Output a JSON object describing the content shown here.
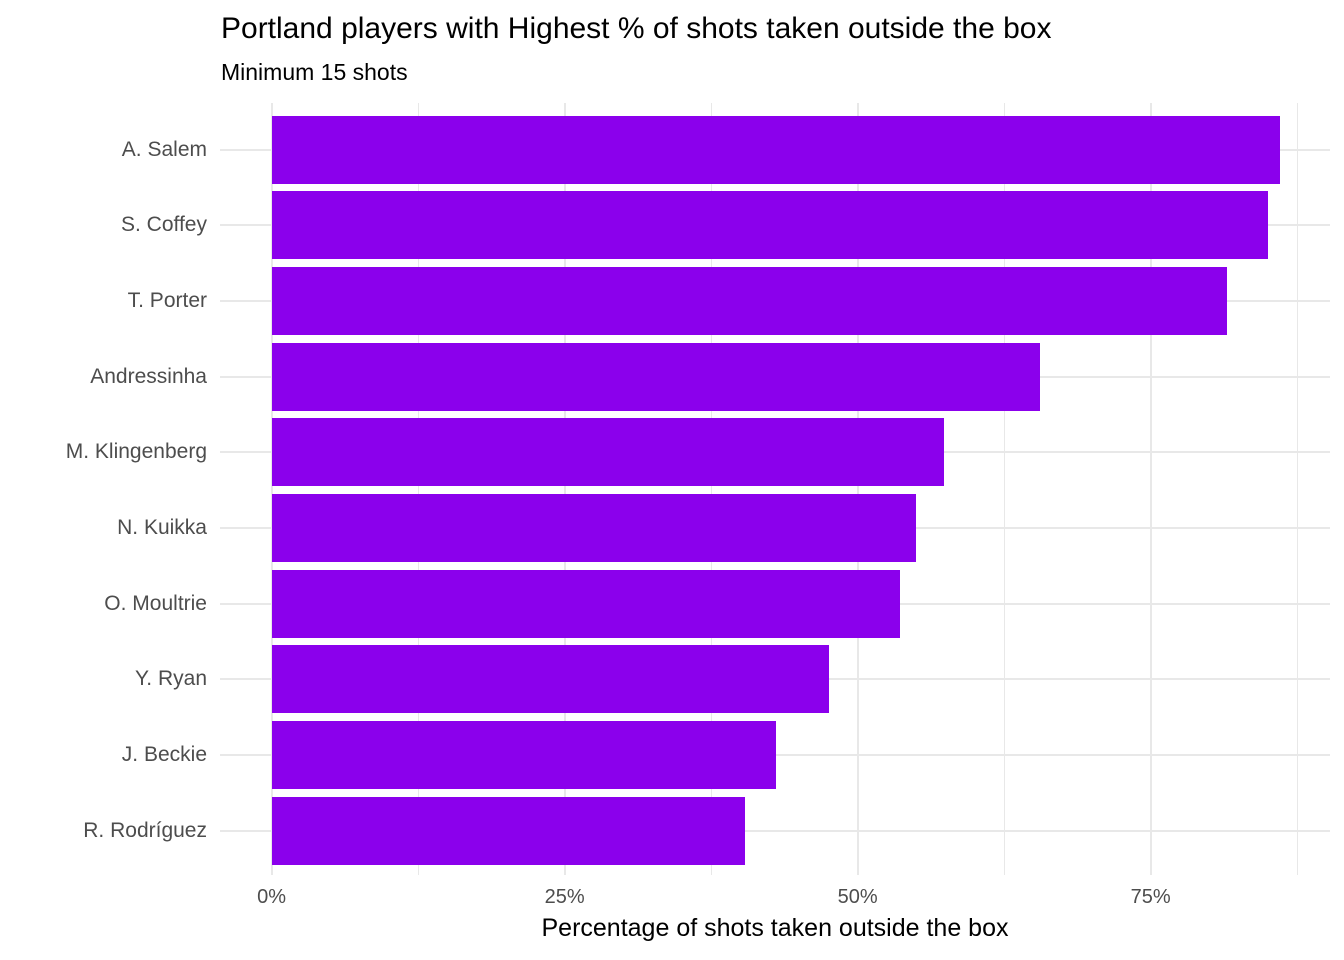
{
  "chart_data": {
    "type": "bar",
    "orientation": "horizontal",
    "title": "Portland players with Highest % of shots taken outside the box",
    "subtitle": "Minimum 15 shots",
    "xlabel": "Percentage of shots taken outside the box",
    "ylabel": "",
    "categories": [
      "A. Salem",
      "S. Coffey",
      "T. Porter",
      "Andressinha",
      "M. Klingenberg",
      "N. Kuikka",
      "O. Moultrie",
      "Y. Ryan",
      "J. Beckie",
      "R. Rodríguez"
    ],
    "values": [
      86.0,
      85.0,
      81.5,
      65.6,
      57.4,
      55.0,
      53.6,
      47.6,
      43.0,
      40.4
    ],
    "x_ticks": [
      {
        "value": 0,
        "label": "0%"
      },
      {
        "value": 25,
        "label": "25%"
      },
      {
        "value": 50,
        "label": "50%"
      },
      {
        "value": 75,
        "label": "75%"
      }
    ],
    "x_minor_ticks": [
      12.5,
      37.5,
      62.5,
      87.5
    ],
    "xlim": [
      -4.4,
      90.3
    ],
    "grid": true,
    "legend": false,
    "bar_color": "#8b00ec",
    "gridline_color": "#e8e8e8",
    "axis_text_color": "#4d4d4d",
    "title_color": "#000000",
    "background_color": "#ffffff"
  }
}
